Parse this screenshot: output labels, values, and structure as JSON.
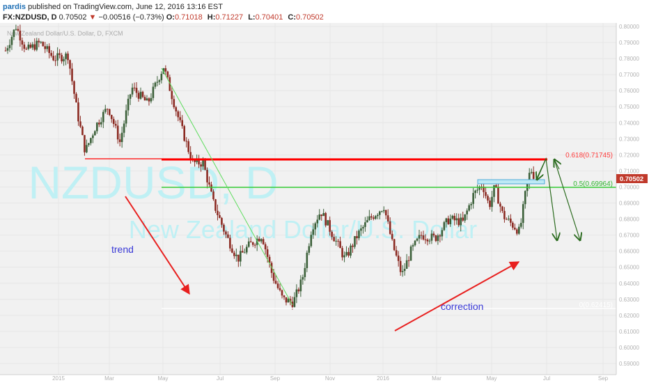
{
  "header": {
    "username": "pardis",
    "published_text": "published on TradingView.com, June 12, 2016 13:16 EST",
    "symbol": "FX:NZDUSD, D",
    "last_price": "0.70502",
    "change_arrow": "▼",
    "change": "−0.00516 (−0.73%)",
    "ohlc": [
      {
        "label": "O:",
        "value": "0.71018"
      },
      {
        "label": "H:",
        "value": "0.71227"
      },
      {
        "label": "L:",
        "value": "0.70401"
      },
      {
        "label": "C:",
        "value": "0.70502"
      }
    ]
  },
  "legend_text": "New Zealand Dollar/U.S. Dollar, D, FXCM",
  "watermark": {
    "symbol": "NZDUSD, D",
    "description": "New Zealand Dollar/U.S. Dollar"
  },
  "annotations": {
    "trend": "trend",
    "correction": "correction",
    "fib_618": "0.618(0.71745)",
    "fib_05": "0.5(0.69964)",
    "fib_bottom": "0(0.62415)"
  },
  "colors": {
    "bull_candle": "#3a5f38",
    "bear_candle": "#8b2a22",
    "fib_red": "#ff0000",
    "fib_green": "#33cc33",
    "trend_line_green": "#5ddc5d",
    "arrow_red": "#e8201f",
    "arrow_green": "#2b6b1f",
    "label_blue": "#3a3ad8",
    "price_tag": "#c0392b",
    "zone_fill": "#bde9f5"
  },
  "chart_data": {
    "type": "candlestick",
    "symbol": "NZDUSD",
    "timeframe": "D",
    "ylim": [
      0.59,
      0.8
    ],
    "y_ticks": [
      "0.80000",
      "0.79000",
      "0.78000",
      "0.77000",
      "0.76000",
      "0.75000",
      "0.74000",
      "0.73000",
      "0.72000",
      "0.71000",
      "0.70000",
      "0.69000",
      "0.68000",
      "0.67000",
      "0.66000",
      "0.65000",
      "0.64000",
      "0.63000",
      "0.62000",
      "0.61000",
      "0.60000",
      "0.59000"
    ],
    "x_ticks": [
      "2015",
      "Mar",
      "May",
      "Jul",
      "Sep",
      "Nov",
      "2016",
      "Mar",
      "May",
      "Jul",
      "Sep"
    ],
    "last_price_tag": "0.70502",
    "last_price": 0.70502,
    "fib_levels": [
      {
        "label": "0.618(0.71745)",
        "value": 0.71745
      },
      {
        "label": "0.5(0.69964)",
        "value": 0.69964
      },
      {
        "label": "0(0.62415)",
        "value": 0.62415
      }
    ],
    "anchors": [
      {
        "x": 0,
        "y": 0.785
      },
      {
        "x": 15,
        "y": 0.8
      },
      {
        "x": 30,
        "y": 0.785
      },
      {
        "x": 50,
        "y": 0.79
      },
      {
        "x": 70,
        "y": 0.78
      },
      {
        "x": 90,
        "y": 0.782
      },
      {
        "x": 104,
        "y": 0.745
      },
      {
        "x": 115,
        "y": 0.722
      },
      {
        "x": 130,
        "y": 0.738
      },
      {
        "x": 148,
        "y": 0.75
      },
      {
        "x": 165,
        "y": 0.728
      },
      {
        "x": 182,
        "y": 0.762
      },
      {
        "x": 205,
        "y": 0.752
      },
      {
        "x": 228,
        "y": 0.775
      },
      {
        "x": 250,
        "y": 0.742
      },
      {
        "x": 270,
        "y": 0.715
      },
      {
        "x": 285,
        "y": 0.715
      },
      {
        "x": 300,
        "y": 0.69
      },
      {
        "x": 318,
        "y": 0.67
      },
      {
        "x": 335,
        "y": 0.655
      },
      {
        "x": 350,
        "y": 0.663
      },
      {
        "x": 370,
        "y": 0.67
      },
      {
        "x": 385,
        "y": 0.645
      },
      {
        "x": 400,
        "y": 0.63
      },
      {
        "x": 415,
        "y": 0.628
      },
      {
        "x": 428,
        "y": 0.642
      },
      {
        "x": 442,
        "y": 0.675
      },
      {
        "x": 455,
        "y": 0.685
      },
      {
        "x": 470,
        "y": 0.672
      },
      {
        "x": 490,
        "y": 0.655
      },
      {
        "x": 508,
        "y": 0.67
      },
      {
        "x": 525,
        "y": 0.68
      },
      {
        "x": 546,
        "y": 0.688
      },
      {
        "x": 558,
        "y": 0.665
      },
      {
        "x": 572,
        "y": 0.645
      },
      {
        "x": 585,
        "y": 0.66
      },
      {
        "x": 600,
        "y": 0.67
      },
      {
        "x": 620,
        "y": 0.668
      },
      {
        "x": 640,
        "y": 0.68
      },
      {
        "x": 660,
        "y": 0.678
      },
      {
        "x": 675,
        "y": 0.695
      },
      {
        "x": 688,
        "y": 0.702
      },
      {
        "x": 698,
        "y": 0.688
      },
      {
        "x": 706,
        "y": 0.7
      },
      {
        "x": 718,
        "y": 0.682
      },
      {
        "x": 735,
        "y": 0.675
      },
      {
        "x": 742,
        "y": 0.672
      },
      {
        "x": 750,
        "y": 0.695
      },
      {
        "x": 758,
        "y": 0.712
      },
      {
        "x": 762,
        "y": 0.705
      }
    ]
  }
}
